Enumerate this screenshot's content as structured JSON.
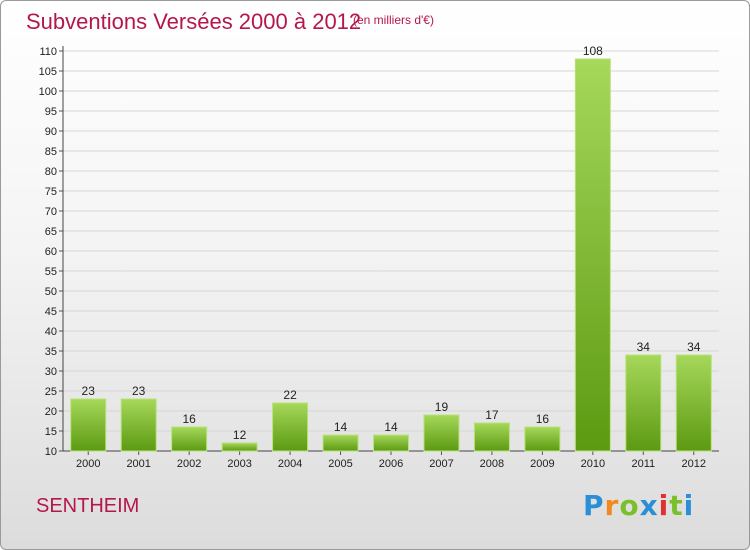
{
  "header": {
    "title": "Subventions Versées 2000 à 2012",
    "unit": "(en milliers d'€)"
  },
  "footer": {
    "place": "SENTHEIM",
    "brand": "Proxiti"
  },
  "colors": {
    "accent": "#b5174b",
    "bar_light": "#9ed24e",
    "bar_dark": "#5e9c13"
  },
  "chart_data": {
    "type": "bar",
    "title": "Subventions Versées 2000 à 2012",
    "subtitle": "(en milliers d'€)",
    "xlabel": "",
    "ylabel": "",
    "categories": [
      "2000",
      "2001",
      "2002",
      "2003",
      "2004",
      "2005",
      "2006",
      "2007",
      "2008",
      "2009",
      "2010",
      "2011",
      "2012"
    ],
    "values": [
      23,
      23,
      16,
      12,
      22,
      14,
      14,
      19,
      17,
      16,
      108,
      34,
      34
    ],
    "ylim": [
      10,
      110
    ],
    "yticks": [
      10,
      15,
      20,
      25,
      30,
      35,
      40,
      45,
      50,
      55,
      60,
      65,
      70,
      75,
      80,
      85,
      90,
      95,
      100,
      105,
      110
    ],
    "grid": true,
    "legend": "none"
  }
}
